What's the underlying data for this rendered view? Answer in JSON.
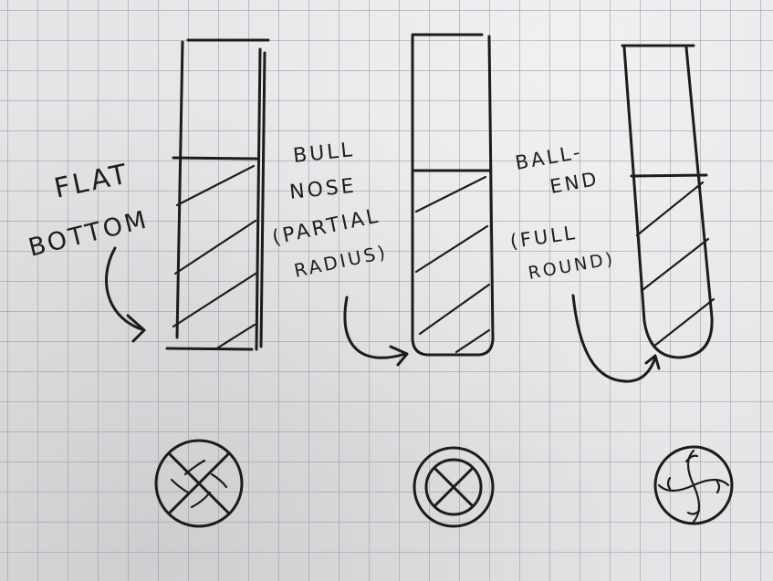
{
  "labels": {
    "flat_bottom": {
      "line1": "FLAT",
      "line2": "BOTTOM"
    },
    "bull_nose": {
      "line1": "BULL",
      "line2": "NOSE",
      "line3": "(PARTIAL",
      "line4": "RADIUS)"
    },
    "ball_end": {
      "line1": "BALL-",
      "line2": "END",
      "line3": "(FULL",
      "line4": "ROUND)"
    }
  }
}
